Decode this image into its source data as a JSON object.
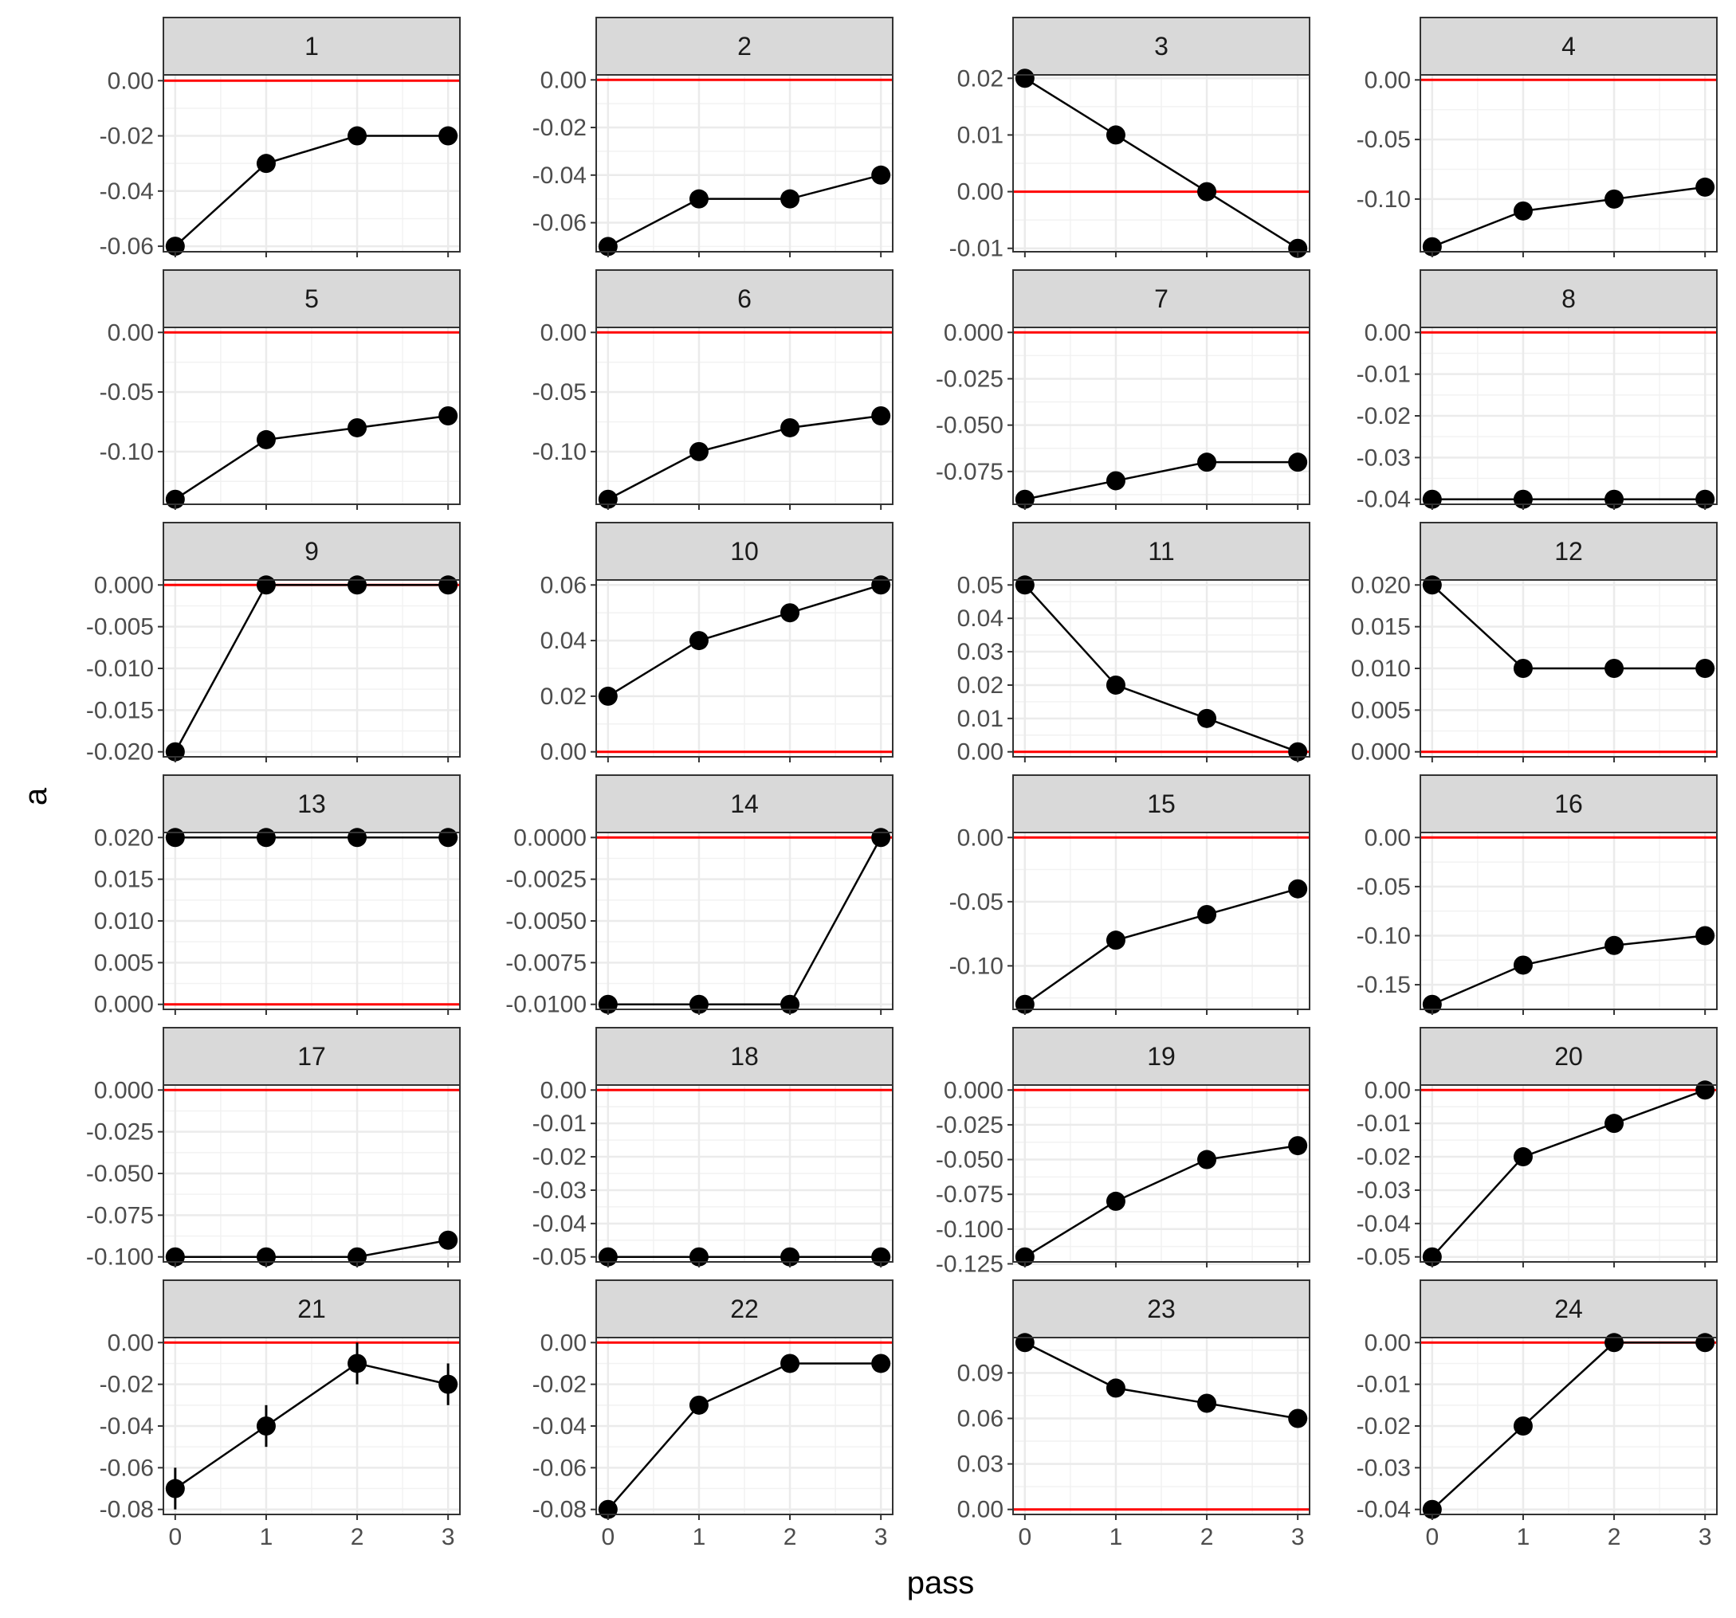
{
  "chart_data": {
    "type": "line",
    "xlabel": "pass",
    "ylabel": "a",
    "x": [
      0,
      1,
      2,
      3
    ],
    "x_ticks": [
      "0",
      "1",
      "2",
      "3"
    ],
    "reference_line": {
      "y": 0,
      "color": "#ff0000"
    },
    "panel_background": "#ffffff",
    "strip_color": "#d9d9d9",
    "grid": true,
    "panels": [
      {
        "label": "1",
        "ylim": [
          -0.062,
          0.0021
        ],
        "yticks": [
          0.0,
          -0.02,
          -0.04,
          -0.06
        ],
        "ytick_labels": [
          "0.00",
          "-0.02",
          "-0.04",
          "-0.06"
        ],
        "values": [
          -0.06,
          -0.03,
          -0.02,
          -0.02
        ]
      },
      {
        "label": "2",
        "ylim": [
          -0.0722,
          0.0021
        ],
        "yticks": [
          0.0,
          -0.02,
          -0.04,
          -0.06
        ],
        "ytick_labels": [
          "0.00",
          "-0.02",
          "-0.04",
          "-0.06"
        ],
        "values": [
          -0.07,
          -0.05,
          -0.05,
          -0.04
        ]
      },
      {
        "label": "3",
        "ylim": [
          -0.0106,
          0.0206
        ],
        "yticks": [
          0.02,
          0.01,
          0.0,
          -0.01
        ],
        "ytick_labels": [
          "0.02",
          "0.01",
          "0.00",
          "-0.01"
        ],
        "values": [
          0.02,
          0.01,
          0.0,
          -0.01
        ]
      },
      {
        "label": "4",
        "ylim": [
          -0.1442,
          0.0042
        ],
        "yticks": [
          0.0,
          -0.05,
          -0.1
        ],
        "ytick_labels": [
          "0.00",
          "-0.05",
          "-0.10"
        ],
        "values": [
          -0.14,
          -0.11,
          -0.1,
          -0.09
        ]
      },
      {
        "label": "5",
        "ylim": [
          -0.1442,
          0.0042
        ],
        "yticks": [
          0.0,
          -0.05,
          -0.1
        ],
        "ytick_labels": [
          "0.00",
          "-0.05",
          "-0.10"
        ],
        "values": [
          -0.14,
          -0.09,
          -0.08,
          -0.07
        ]
      },
      {
        "label": "6",
        "ylim": [
          -0.1442,
          0.0042
        ],
        "yticks": [
          0.0,
          -0.05,
          -0.1
        ],
        "ytick_labels": [
          "0.00",
          "-0.05",
          "-0.10"
        ],
        "values": [
          -0.14,
          -0.1,
          -0.08,
          -0.07
        ]
      },
      {
        "label": "7",
        "ylim": [
          -0.0927,
          0.0027
        ],
        "yticks": [
          0.0,
          -0.025,
          -0.05,
          -0.075
        ],
        "ytick_labels": [
          "0.000",
          "-0.025",
          "-0.050",
          "-0.075"
        ],
        "values": [
          -0.09,
          -0.08,
          -0.07,
          -0.07
        ]
      },
      {
        "label": "8",
        "ylim": [
          -0.0412,
          0.0012
        ],
        "yticks": [
          0.0,
          -0.01,
          -0.02,
          -0.03,
          -0.04
        ],
        "ytick_labels": [
          "0.00",
          "-0.01",
          "-0.02",
          "-0.03",
          "-0.04"
        ],
        "values": [
          -0.04,
          -0.04,
          -0.04,
          -0.04
        ]
      },
      {
        "label": "9",
        "ylim": [
          -0.0206,
          0.0006
        ],
        "yticks": [
          0.0,
          -0.005,
          -0.01,
          -0.015,
          -0.02
        ],
        "ytick_labels": [
          "0.000",
          "-0.005",
          "-0.010",
          "-0.015",
          "-0.020"
        ],
        "values": [
          -0.02,
          0.0,
          0.0,
          0.0
        ]
      },
      {
        "label": "10",
        "ylim": [
          -0.0018,
          0.0618
        ],
        "yticks": [
          0.06,
          0.04,
          0.02,
          0.0
        ],
        "ytick_labels": [
          "0.06",
          "0.04",
          "0.02",
          "0.00"
        ],
        "values": [
          0.02,
          0.04,
          0.05,
          0.06
        ]
      },
      {
        "label": "11",
        "ylim": [
          -0.0015,
          0.0515
        ],
        "yticks": [
          0.05,
          0.04,
          0.03,
          0.02,
          0.01,
          0.0
        ],
        "ytick_labels": [
          "0.05",
          "0.04",
          "0.03",
          "0.02",
          "0.01",
          "0.00"
        ],
        "values": [
          0.05,
          0.02,
          0.01,
          0.0
        ]
      },
      {
        "label": "12",
        "ylim": [
          -0.0006,
          0.0206
        ],
        "yticks": [
          0.02,
          0.015,
          0.01,
          0.005,
          0.0
        ],
        "ytick_labels": [
          "0.020",
          "0.015",
          "0.010",
          "0.005",
          "0.000"
        ],
        "values": [
          0.02,
          0.01,
          0.01,
          0.01
        ]
      },
      {
        "label": "13",
        "ylim": [
          -0.0006,
          0.0206
        ],
        "yticks": [
          0.02,
          0.015,
          0.01,
          0.005,
          0.0
        ],
        "ytick_labels": [
          "0.020",
          "0.015",
          "0.010",
          "0.005",
          "0.000"
        ],
        "values": [
          0.02,
          0.02,
          0.02,
          0.02
        ]
      },
      {
        "label": "14",
        "ylim": [
          -0.0103,
          0.0003
        ],
        "yticks": [
          0.0,
          -0.0025,
          -0.005,
          -0.0075,
          -0.01
        ],
        "ytick_labels": [
          "0.0000",
          "-0.0025",
          "-0.0050",
          "-0.0075",
          "-0.0100"
        ],
        "values": [
          -0.01,
          -0.01,
          -0.01,
          0.0
        ]
      },
      {
        "label": "15",
        "ylim": [
          -0.1339,
          0.0039
        ],
        "yticks": [
          0.0,
          -0.05,
          -0.1
        ],
        "ytick_labels": [
          "0.00",
          "-0.05",
          "-0.10"
        ],
        "values": [
          -0.13,
          -0.08,
          -0.06,
          -0.04
        ]
      },
      {
        "label": "16",
        "ylim": [
          -0.1751,
          0.0051
        ],
        "yticks": [
          0.0,
          -0.05,
          -0.1,
          -0.15
        ],
        "ytick_labels": [
          "0.00",
          "-0.05",
          "-0.10",
          "-0.15"
        ],
        "values": [
          -0.17,
          -0.13,
          -0.11,
          -0.1
        ]
      },
      {
        "label": "17",
        "ylim": [
          -0.103,
          0.003
        ],
        "yticks": [
          0.0,
          -0.025,
          -0.05,
          -0.075,
          -0.1
        ],
        "ytick_labels": [
          "0.000",
          "-0.025",
          "-0.050",
          "-0.075",
          "-0.100"
        ],
        "values": [
          -0.1,
          -0.1,
          -0.1,
          -0.09
        ]
      },
      {
        "label": "18",
        "ylim": [
          -0.0515,
          0.0015
        ],
        "yticks": [
          0.0,
          -0.01,
          -0.02,
          -0.03,
          -0.04,
          -0.05
        ],
        "ytick_labels": [
          "0.00",
          "-0.01",
          "-0.02",
          "-0.03",
          "-0.04",
          "-0.05"
        ],
        "values": [
          -0.05,
          -0.05,
          -0.05,
          -0.05
        ]
      },
      {
        "label": "19",
        "ylim": [
          -0.1236,
          0.0036
        ],
        "yticks": [
          0.0,
          -0.025,
          -0.05,
          -0.075,
          -0.1,
          -0.125
        ],
        "ytick_labels": [
          "0.000",
          "-0.025",
          "-0.050",
          "-0.075",
          "-0.100",
          "-0.125"
        ],
        "values": [
          -0.12,
          -0.08,
          -0.05,
          -0.04
        ]
      },
      {
        "label": "20",
        "ylim": [
          -0.0515,
          0.0015
        ],
        "yticks": [
          0.0,
          -0.01,
          -0.02,
          -0.03,
          -0.04,
          -0.05
        ],
        "ytick_labels": [
          "0.00",
          "-0.01",
          "-0.02",
          "-0.03",
          "-0.04",
          "-0.05"
        ],
        "values": [
          -0.05,
          -0.02,
          -0.01,
          0.0
        ]
      },
      {
        "label": "21",
        "ylim": [
          -0.0824,
          0.0024
        ],
        "yticks": [
          0.0,
          -0.02,
          -0.04,
          -0.06,
          -0.08
        ],
        "ytick_labels": [
          "0.00",
          "-0.02",
          "-0.04",
          "-0.06",
          "-0.08"
        ],
        "values": [
          -0.07,
          -0.04,
          -0.01,
          -0.02
        ],
        "errors": [
          0.01,
          0.01,
          0.01,
          0.01
        ]
      },
      {
        "label": "22",
        "ylim": [
          -0.0824,
          0.0024
        ],
        "yticks": [
          0.0,
          -0.02,
          -0.04,
          -0.06,
          -0.08
        ],
        "ytick_labels": [
          "0.00",
          "-0.02",
          "-0.04",
          "-0.06",
          "-0.08"
        ],
        "values": [
          -0.08,
          -0.03,
          -0.01,
          -0.01
        ]
      },
      {
        "label": "23",
        "ylim": [
          -0.0033,
          0.1133
        ],
        "yticks": [
          0.09,
          0.06,
          0.03,
          0.0
        ],
        "ytick_labels": [
          "0.09",
          "0.06",
          "0.03",
          "0.00"
        ],
        "values": [
          0.11,
          0.08,
          0.07,
          0.06
        ]
      },
      {
        "label": "24",
        "ylim": [
          -0.0412,
          0.0012
        ],
        "yticks": [
          0.0,
          -0.01,
          -0.02,
          -0.03,
          -0.04
        ],
        "ytick_labels": [
          "0.00",
          "-0.01",
          "-0.02",
          "-0.03",
          "-0.04"
        ],
        "values": [
          -0.04,
          -0.02,
          0.0,
          0.0
        ]
      }
    ]
  }
}
